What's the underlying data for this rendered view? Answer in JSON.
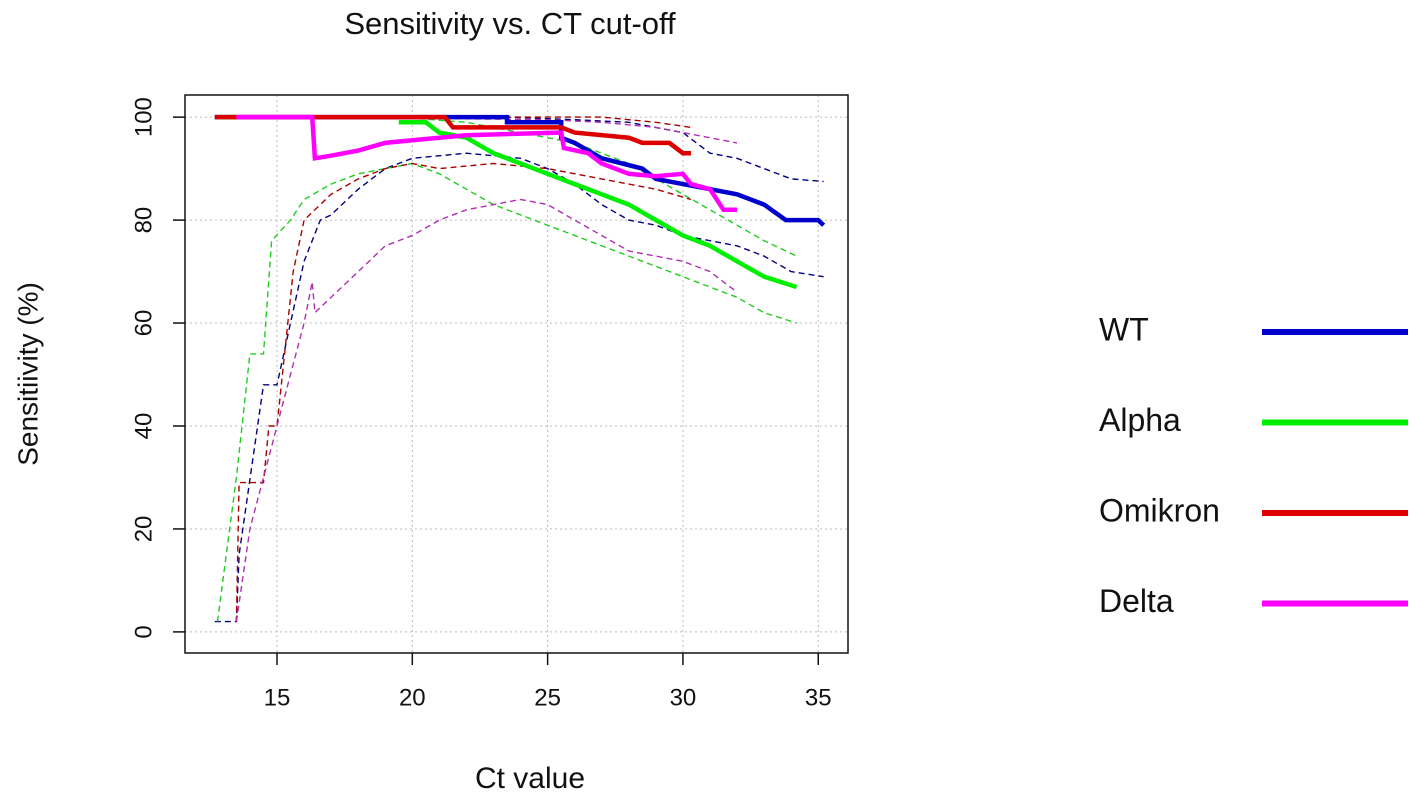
{
  "chart_data": {
    "type": "line",
    "title": "Sensitivity vs. CT cut-off",
    "xlabel": "Ct value",
    "ylabel": "Sensitiivity (%)",
    "xlim": [
      11.6,
      36.1
    ],
    "ylim": [
      -4.1,
      104.3
    ],
    "xticks": [
      15,
      20,
      25,
      30,
      35
    ],
    "yticks": [
      0,
      20,
      40,
      60,
      80,
      100
    ],
    "grid": true,
    "legend": "right",
    "series": [
      {
        "name": "WT",
        "color": "#0000cc",
        "x": [
          12.7,
          23.5,
          23.5,
          25.5,
          25.5,
          26,
          27,
          28.5,
          29,
          30,
          31,
          32,
          33,
          33.8,
          35,
          35.2
        ],
        "values": [
          100,
          100,
          99,
          99,
          96,
          95,
          92,
          90,
          88,
          87,
          86,
          85,
          83,
          80,
          80,
          79
        ]
      },
      {
        "name": "Alpha",
        "color": "#00ee00",
        "x": [
          12.9,
          13.5,
          16,
          19.5,
          20.5,
          21,
          22,
          23,
          24,
          25,
          26,
          27,
          28,
          29,
          30,
          31,
          32,
          33,
          34.2
        ],
        "values": [
          100,
          100,
          null,
          99,
          99,
          97,
          96,
          93,
          91,
          89,
          87,
          85,
          83,
          80,
          77,
          75,
          72,
          69,
          67
        ]
      },
      {
        "name": "Omikron",
        "color": "#dd0000",
        "x": [
          12.7,
          21.2,
          21.5,
          25.5,
          26,
          28,
          28.5,
          29.5,
          30,
          30.3
        ],
        "values": [
          100,
          100,
          98,
          98,
          97,
          96,
          95,
          95,
          93,
          93
        ]
      },
      {
        "name": "Delta",
        "color": "#ff00ff",
        "x": [
          13.5,
          16.3,
          16.4,
          17,
          18,
          19,
          20,
          21,
          22,
          25.5,
          25.6,
          26.5,
          27,
          28,
          29,
          30,
          30.3,
          31,
          31.5,
          32
        ],
        "values": [
          100,
          100,
          92,
          92.5,
          93.5,
          95,
          95.5,
          96,
          96.5,
          97,
          94,
          93,
          91,
          89,
          88.5,
          89,
          87,
          86,
          82,
          82
        ]
      }
    ],
    "bands": [
      {
        "color": "#000080",
        "lower": {
          "x": [
            12.7,
            13.5,
            13.6,
            14.5,
            15,
            15.5,
            16,
            16.6,
            17,
            18,
            19,
            20,
            22,
            24,
            25,
            26,
            27,
            28,
            29,
            30,
            31,
            32,
            33,
            34,
            35.2
          ],
          "values": [
            2,
            2,
            15,
            48,
            48,
            60,
            72,
            80,
            81,
            86,
            90,
            92,
            93,
            92,
            90,
            87,
            83,
            80,
            79,
            77,
            76,
            75,
            73,
            70,
            69
          ]
        },
        "upper": {
          "x": [
            12.7,
            23.5,
            26,
            28,
            30,
            31,
            32,
            33,
            34,
            35.2
          ],
          "values": [
            100,
            100,
            99.5,
            99,
            97,
            93,
            92,
            90,
            88,
            87.5
          ]
        }
      },
      {
        "color": "#22cc22",
        "lower": {
          "x": [
            12.8,
            13.5,
            14,
            14.5,
            14.8,
            15.5,
            16,
            17,
            18,
            19,
            20,
            21,
            22,
            23,
            24,
            25,
            26,
            27,
            28,
            29,
            30,
            31,
            32,
            33,
            34.2
          ],
          "values": [
            2,
            30,
            54,
            54,
            76,
            80,
            84,
            87,
            89,
            90,
            91,
            89,
            86,
            83,
            81,
            79,
            77,
            75,
            73,
            71,
            69,
            67,
            65,
            62,
            60
          ]
        },
        "upper": {
          "x": [
            19.5,
            22,
            24,
            25,
            26,
            27,
            28,
            29,
            30,
            31,
            32,
            33,
            34.2
          ],
          "values": [
            100,
            99,
            97,
            96,
            95,
            93,
            91,
            88,
            85,
            82,
            79,
            76,
            73
          ]
        }
      },
      {
        "color": "#aa0000",
        "lower": {
          "x": [
            13.5,
            13.6,
            14.5,
            14.7,
            15,
            15.3,
            15.6,
            16,
            17,
            18,
            19,
            20,
            21,
            23,
            25,
            27,
            28,
            29,
            30.3
          ],
          "values": [
            2,
            29,
            29,
            40,
            40,
            55,
            70,
            80,
            85,
            88,
            90,
            91,
            90,
            91,
            90,
            88,
            87,
            86,
            84
          ]
        },
        "upper": {
          "x": [
            21.2,
            27,
            29,
            30.3
          ],
          "values": [
            100,
            100,
            99,
            98
          ]
        }
      },
      {
        "color": "#b030b0",
        "lower": {
          "x": [
            13.5,
            14,
            14.5,
            15,
            15.5,
            16,
            16.3,
            16.4,
            17,
            18,
            19,
            20,
            21,
            22,
            23,
            24,
            25,
            26,
            27,
            28,
            29,
            30,
            31,
            32
          ],
          "values": [
            2,
            20,
            30,
            40,
            50,
            60,
            68,
            62,
            65,
            70,
            75,
            77,
            80,
            82,
            83,
            84,
            83,
            80,
            77,
            74,
            73,
            72,
            70,
            66
          ]
        },
        "upper": {
          "x": [
            16.4,
            25,
            27,
            29,
            30,
            31,
            32
          ],
          "values": [
            100,
            99.5,
            99,
            98,
            97,
            96,
            95
          ]
        }
      }
    ]
  }
}
